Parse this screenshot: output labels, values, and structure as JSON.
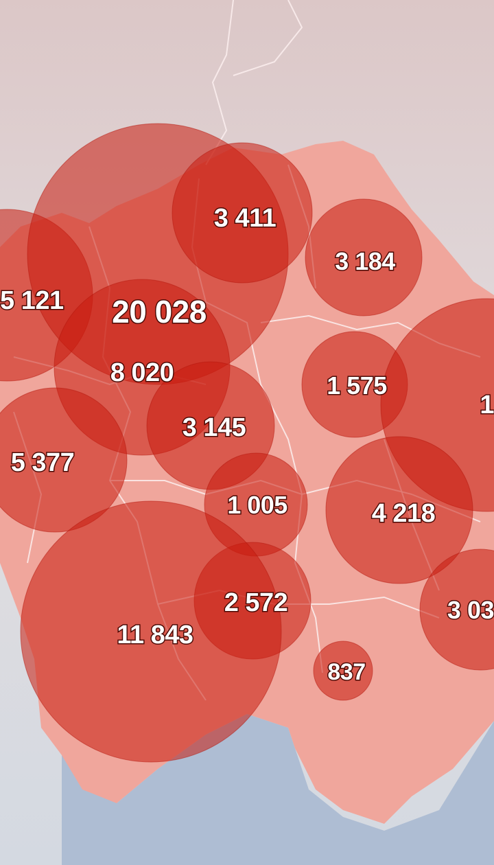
{
  "map": {
    "colors": {
      "land_neighbors": "#e3d5d3",
      "country_fill": "#f0a69c",
      "sea": "#aebdd3",
      "border": "#fbeeee",
      "circle": "#c81b0f",
      "label_text": "#ffffff"
    },
    "regions": [
      {
        "id": "west-cut",
        "value": "5 121"
      },
      {
        "id": "kyiv",
        "value": "20 028"
      },
      {
        "id": "kyiv-oblast",
        "value": "8 020"
      },
      {
        "id": "chernihiv",
        "value": "3 411"
      },
      {
        "id": "sumy",
        "value": "3 184"
      },
      {
        "id": "poltava",
        "value": "1 575"
      },
      {
        "id": "kharkiv",
        "value": "1"
      },
      {
        "id": "cherkasy",
        "value": "3 145"
      },
      {
        "id": "vinnytsia",
        "value": "5 377"
      },
      {
        "id": "kirovohrad",
        "value": "1 005"
      },
      {
        "id": "dnipro",
        "value": "4 218"
      },
      {
        "id": "zaporizhzhia",
        "value": "3 03"
      },
      {
        "id": "mykolaiv",
        "value": "2 572"
      },
      {
        "id": "odesa",
        "value": "11 843"
      },
      {
        "id": "kherson",
        "value": "837"
      }
    ]
  }
}
